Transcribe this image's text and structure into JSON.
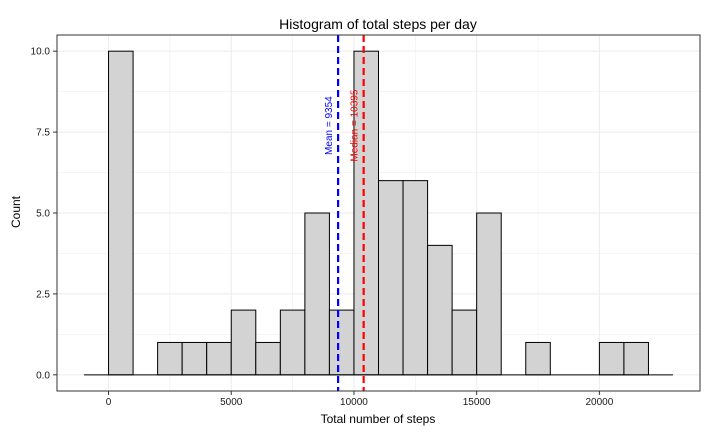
{
  "chart_data": {
    "type": "bar",
    "title": "Histogram of total steps per day",
    "xlabel": "Total number of steps",
    "ylabel": "Count",
    "bin_width": 1000,
    "bins": [
      {
        "start": -1000,
        "count": 0
      },
      {
        "start": 0,
        "count": 10
      },
      {
        "start": 1000,
        "count": 0
      },
      {
        "start": 2000,
        "count": 1
      },
      {
        "start": 3000,
        "count": 1
      },
      {
        "start": 4000,
        "count": 1
      },
      {
        "start": 5000,
        "count": 2
      },
      {
        "start": 6000,
        "count": 1
      },
      {
        "start": 7000,
        "count": 2
      },
      {
        "start": 8000,
        "count": 5
      },
      {
        "start": 9000,
        "count": 2
      },
      {
        "start": 10000,
        "count": 10
      },
      {
        "start": 11000,
        "count": 6
      },
      {
        "start": 12000,
        "count": 6
      },
      {
        "start": 13000,
        "count": 4
      },
      {
        "start": 14000,
        "count": 2
      },
      {
        "start": 15000,
        "count": 5
      },
      {
        "start": 16000,
        "count": 0
      },
      {
        "start": 17000,
        "count": 1
      },
      {
        "start": 18000,
        "count": 0
      },
      {
        "start": 19000,
        "count": 0
      },
      {
        "start": 20000,
        "count": 1
      },
      {
        "start": 21000,
        "count": 1
      },
      {
        "start": 22000,
        "count": 0
      }
    ],
    "xlim": [
      -2100,
      24100
    ],
    "ylim": [
      -0.5,
      10.5
    ],
    "x_ticks": [
      0,
      5000,
      10000,
      15000,
      20000
    ],
    "x_tick_labels": [
      "0",
      "5000",
      "10000",
      "15000",
      "20000"
    ],
    "y_ticks": [
      0,
      2.5,
      5,
      7.5,
      10
    ],
    "y_tick_labels": [
      "0.0",
      "2.5",
      "5.0",
      "7.5",
      "10.0"
    ],
    "grid": true,
    "vlines": [
      {
        "value": 9354,
        "label": "Mean = 9354",
        "color": "#0000ff",
        "label_y": 7.7
      },
      {
        "value": 10395,
        "label": "Median = 10395",
        "color": "#ff0000",
        "label_y": 7.7
      }
    ],
    "colors": {
      "bar_fill": "#d3d3d3",
      "bar_stroke": "#000000",
      "grid": "#ebebeb",
      "panel_border": "#333333"
    }
  }
}
